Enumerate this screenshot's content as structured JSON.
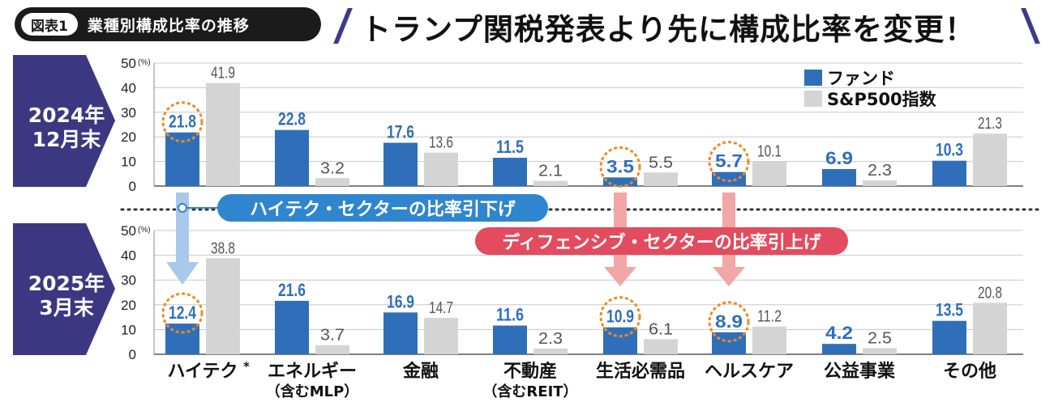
{
  "figure_label": "図表1",
  "figure_title": "業種別構成比率の推移",
  "headline": "トランプ関税発表より先に構成比率を変更！",
  "legend": {
    "fund": "ファンド",
    "sp500": "S&P500指数"
  },
  "annotations": {
    "hightech": "ハイテク・セクターの比率引下げ",
    "defensive": "ディフェンシブ・セクターの比率引上げ"
  },
  "periods": [
    {
      "line1": "2024年",
      "line2": "12月末"
    },
    {
      "line1": "2025年",
      "line2": "3月末"
    }
  ],
  "footnote_mark": "*",
  "colors": {
    "fund": "#2f6fba",
    "sp500": "#d4d4d4",
    "label_bg": "#3b3781",
    "highlight": "#f08a22",
    "arrow_blue": "#a8c8ec",
    "arrow_red": "#f2a6a6"
  },
  "chart_data": [
    {
      "type": "bar",
      "period": "2024年12月末",
      "categories": [
        "ハイテク",
        "エネルギー",
        "金融",
        "不動産",
        "生活必需品",
        "ヘルスケア",
        "公益事業",
        "その他"
      ],
      "category_sublabels": [
        "",
        "（含むMLP）",
        "",
        "（含むREIT）",
        "",
        "",
        "",
        ""
      ],
      "series": [
        {
          "name": "ファンド",
          "values": [
            21.8,
            22.8,
            17.6,
            11.5,
            3.5,
            5.7,
            6.9,
            10.3
          ]
        },
        {
          "name": "S&P500指数",
          "values": [
            41.9,
            3.2,
            13.6,
            2.1,
            5.5,
            10.1,
            2.3,
            21.3
          ]
        }
      ],
      "ylim": [
        0,
        50
      ],
      "yticks": [
        "0",
        "10",
        "20",
        "30",
        "40",
        "50"
      ],
      "yunit": "(%)",
      "highlighted_fund_categories": [
        0,
        4,
        5
      ],
      "grid": true
    },
    {
      "type": "bar",
      "period": "2025年3月末",
      "categories": [
        "ハイテク",
        "エネルギー",
        "金融",
        "不動産",
        "生活必需品",
        "ヘルスケア",
        "公益事業",
        "その他"
      ],
      "category_sublabels": [
        "",
        "（含むMLP）",
        "",
        "（含むREIT）",
        "",
        "",
        "",
        ""
      ],
      "series": [
        {
          "name": "ファンド",
          "values": [
            12.4,
            21.6,
            16.9,
            11.6,
            10.9,
            8.9,
            4.2,
            13.5
          ]
        },
        {
          "name": "S&P500指数",
          "values": [
            38.8,
            3.7,
            14.7,
            2.3,
            6.1,
            11.2,
            2.5,
            20.8
          ]
        }
      ],
      "ylim": [
        0,
        50
      ],
      "yticks": [
        "0",
        "10",
        "20",
        "30",
        "40",
        "50"
      ],
      "yunit": "(%)",
      "highlighted_fund_categories": [
        0,
        4,
        5
      ],
      "grid": true
    }
  ]
}
